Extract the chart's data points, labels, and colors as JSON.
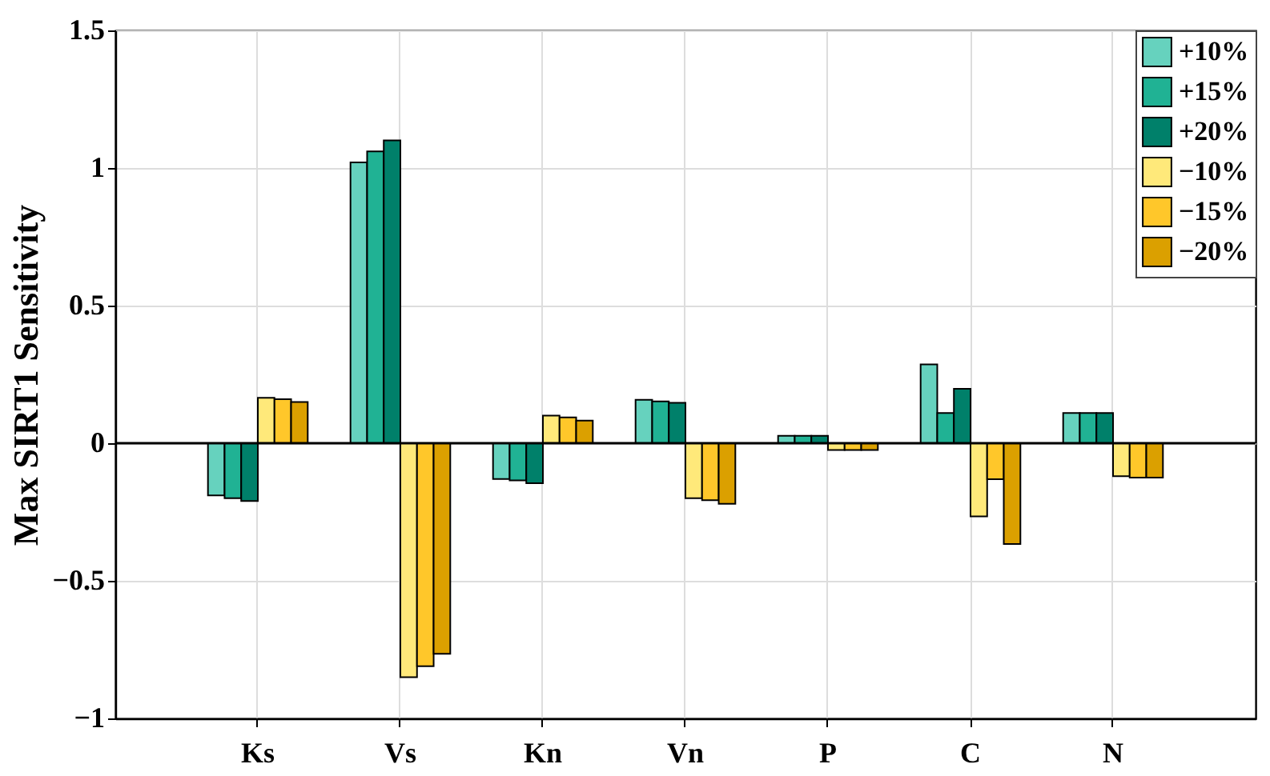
{
  "chart_data": {
    "type": "bar",
    "ylabel": "Max SIRT1 Sensitivity",
    "categories": [
      "Ks",
      "Vs",
      "Kn",
      "Vn",
      "P",
      "C",
      "N"
    ],
    "series": [
      {
        "name": "+10%",
        "color": "#66d2be",
        "values": [
          -0.19,
          1.02,
          -0.13,
          0.158,
          0.027,
          0.286,
          0.11
        ]
      },
      {
        "name": "+15%",
        "color": "#20b294",
        "values": [
          -0.2,
          1.06,
          -0.135,
          0.152,
          0.027,
          0.11,
          0.11
        ]
      },
      {
        "name": "+20%",
        "color": "#00806a",
        "values": [
          -0.21,
          1.1,
          -0.145,
          0.147,
          0.027,
          0.198,
          0.11
        ]
      },
      {
        "name": "−10%",
        "color": "#ffe97a",
        "values": [
          0.165,
          -0.85,
          0.1,
          -0.2,
          -0.025,
          -0.266,
          -0.12
        ]
      },
      {
        "name": "−15%",
        "color": "#ffc72a",
        "values": [
          0.16,
          -0.81,
          0.094,
          -0.207,
          -0.025,
          -0.131,
          -0.125
        ]
      },
      {
        "name": "−20%",
        "color": "#dba000",
        "values": [
          0.15,
          -0.765,
          0.082,
          -0.22,
          -0.025,
          -0.366,
          -0.125
        ]
      }
    ],
    "ylim": [
      -1,
      1.5
    ],
    "yticks": [
      {
        "value": -1,
        "label": "−1"
      },
      {
        "value": -0.5,
        "label": "−0.5"
      },
      0,
      0.5,
      1,
      1.5
    ],
    "ref_lines": [
      {
        "axis": "y",
        "value": 0,
        "color": "#000000"
      }
    ],
    "grid": true,
    "legend": "top right"
  }
}
